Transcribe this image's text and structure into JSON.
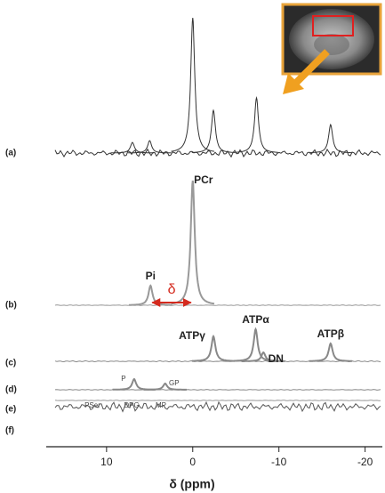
{
  "chart_data": {
    "type": "line",
    "x_label": "δ (ppm)",
    "xlim": [
      17,
      -22
    ],
    "xticks": [
      10,
      0,
      -10,
      -20
    ],
    "annotation": "δ",
    "series": [
      {
        "name": "(a)",
        "color": "#333333",
        "peaks": [
          {
            "x": 0,
            "height": 152
          },
          {
            "x": -2.4,
            "height": 48
          },
          {
            "x": -7.4,
            "height": 62
          },
          {
            "x": -16,
            "height": 32
          },
          {
            "x": 5,
            "height": 14
          },
          {
            "x": 7,
            "height": 12
          }
        ]
      },
      {
        "name": "(b)",
        "color": "#999999",
        "peaks": [
          {
            "x": 0,
            "height": 140,
            "label": "PCr"
          },
          {
            "x": 4.9,
            "height": 22,
            "label": "Pi"
          }
        ]
      },
      {
        "name": "(c)",
        "color": "#888888",
        "peaks": [
          {
            "x": -2.4,
            "height": 28,
            "label": "ATPγ"
          },
          {
            "x": -7.3,
            "height": 36,
            "label": "ATPα"
          },
          {
            "x": -8.2,
            "height": 10,
            "label": "DN"
          },
          {
            "x": -16,
            "height": 20,
            "label": "ATPβ"
          }
        ]
      },
      {
        "name": "(d)",
        "color": "#888888",
        "peaks": [
          {
            "x": 6.8,
            "height": 12,
            "label": "P"
          },
          {
            "x": 3.2,
            "height": 7,
            "label": "GP"
          }
        ]
      },
      {
        "name": "(e)",
        "color": "#999999",
        "labels": [
          "PSer",
          "DPG",
          "MP"
        ]
      },
      {
        "name": "(f)",
        "color": "#555555"
      }
    ]
  }
}
